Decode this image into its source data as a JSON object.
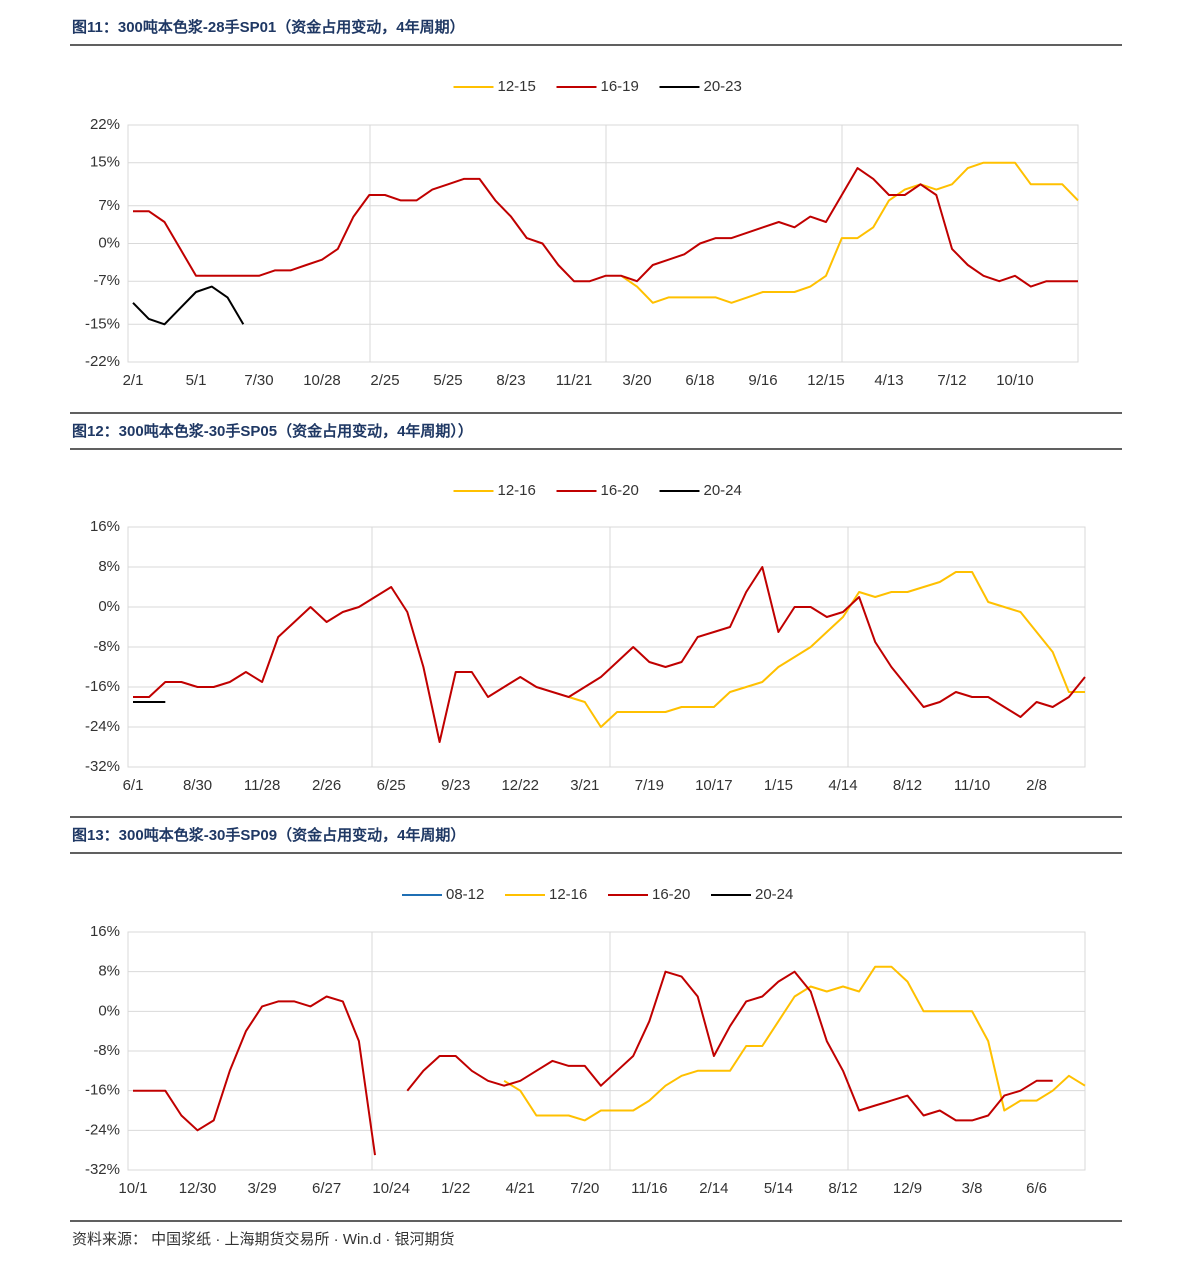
{
  "chart_data": [
    {
      "type": "line",
      "title": "图11：300吨本色浆-28手SP01（资金占用变动，4年周期）",
      "categories": [
        "2/1",
        null,
        null,
        null,
        "5/1",
        null,
        null,
        null,
        "7/30",
        null,
        null,
        null,
        "10/28",
        null,
        null,
        null,
        "2/25",
        null,
        null,
        null,
        "5/25",
        null,
        null,
        null,
        "8/23",
        null,
        null,
        null,
        "11/21",
        null,
        null,
        null,
        "3/20",
        null,
        null,
        null,
        "6/18",
        null,
        null,
        null,
        "9/16",
        null,
        null,
        null,
        "12/15",
        null,
        null,
        null,
        "4/13",
        null,
        null,
        null,
        "7/12",
        null,
        null,
        null,
        "10/10",
        null,
        null,
        null,
        null
      ],
      "ylim": [
        -22,
        22
      ],
      "yticks": [
        {
          "value": 22,
          "label": "22%"
        },
        {
          "value": 15,
          "label": "15%"
        },
        {
          "value": 7,
          "label": "7%"
        },
        {
          "value": 0,
          "label": "0%"
        },
        {
          "value": -7,
          "label": "-7%"
        },
        {
          "value": -15,
          "label": "-15%"
        },
        {
          "value": -22,
          "label": "-22%"
        }
      ],
      "grid": true,
      "series": [
        {
          "name": "12-15",
          "color": "#ffc000",
          "values": [
            null,
            null,
            null,
            null,
            null,
            null,
            null,
            null,
            null,
            null,
            null,
            null,
            null,
            null,
            null,
            null,
            null,
            null,
            null,
            null,
            null,
            null,
            null,
            null,
            null,
            null,
            null,
            null,
            null,
            null,
            null,
            -6,
            -8,
            -11,
            -10,
            -10,
            -10,
            -10,
            -11,
            -10,
            -9,
            -9,
            -9,
            -8,
            -6,
            1,
            1,
            3,
            8,
            10,
            11,
            10,
            11,
            14,
            15,
            15,
            15,
            11,
            11,
            11,
            8
          ]
        },
        {
          "name": "16-19",
          "color": "#c00000",
          "values": [
            6,
            6,
            4,
            -1,
            -6,
            -6,
            -6,
            -6,
            -6,
            -5,
            -5,
            -4,
            -3,
            -1,
            5,
            9,
            9,
            8,
            8,
            10,
            11,
            12,
            12,
            8,
            5,
            1,
            0,
            -4,
            -7,
            -7,
            -6,
            -6,
            -7,
            -4,
            -3,
            -2,
            0,
            1,
            1,
            2,
            3,
            4,
            3,
            5,
            4,
            9,
            14,
            12,
            9,
            9,
            11,
            9,
            -1,
            -4,
            -6,
            -7,
            -6,
            -8,
            -7,
            -7,
            -7
          ]
        },
        {
          "name": "20-23",
          "color": "#000000",
          "values": [
            -11,
            -14,
            -15,
            -12,
            -9,
            -8,
            -10,
            -15,
            null,
            null,
            null,
            null,
            null,
            null,
            null,
            null,
            null,
            null,
            null,
            null,
            null,
            null,
            null,
            null,
            null,
            null,
            null,
            null,
            null,
            null,
            null,
            null,
            null,
            null,
            null,
            null,
            null,
            null,
            null,
            null,
            null,
            null,
            null,
            null,
            null,
            null,
            null,
            null,
            null,
            null,
            null,
            null,
            null,
            null,
            null,
            null,
            null,
            null,
            null,
            null,
            null
          ]
        }
      ]
    },
    {
      "type": "line",
      "title": "图12：300吨本色浆-30手SP05（资金占用变动，4年周期））",
      "categories": [
        "6/1",
        null,
        null,
        null,
        "8/30",
        null,
        null,
        null,
        "11/28",
        null,
        null,
        null,
        "2/26",
        null,
        null,
        null,
        "6/25",
        null,
        null,
        null,
        "9/23",
        null,
        null,
        null,
        "12/22",
        null,
        null,
        null,
        "3/21",
        null,
        null,
        null,
        "7/19",
        null,
        null,
        null,
        "10/17",
        null,
        null,
        null,
        "1/15",
        null,
        null,
        null,
        "4/14",
        null,
        null,
        null,
        "8/12",
        null,
        null,
        null,
        "11/10",
        null,
        null,
        null,
        "2/8",
        null,
        null,
        null
      ],
      "ylim": [
        -32,
        16
      ],
      "yticks": [
        {
          "value": 16,
          "label": "16%"
        },
        {
          "value": 8,
          "label": "8%"
        },
        {
          "value": 0,
          "label": "0%"
        },
        {
          "value": -8,
          "label": "-8%"
        },
        {
          "value": -16,
          "label": "-16%"
        },
        {
          "value": -24,
          "label": "-24%"
        },
        {
          "value": -32,
          "label": "-32%"
        }
      ],
      "grid": true,
      "series": [
        {
          "name": "12-16",
          "color": "#ffc000",
          "values": [
            null,
            null,
            null,
            null,
            null,
            null,
            null,
            null,
            null,
            null,
            null,
            null,
            null,
            null,
            null,
            null,
            null,
            null,
            null,
            null,
            null,
            null,
            null,
            null,
            null,
            null,
            null,
            -18,
            -19,
            -24,
            -21,
            -21,
            -21,
            -21,
            -20,
            -20,
            -20,
            -17,
            -16,
            -15,
            -12,
            -10,
            -8,
            -5,
            -2,
            3,
            2,
            3,
            3,
            4,
            5,
            7,
            7,
            1,
            0,
            -1,
            -5,
            -9,
            -17,
            -17
          ]
        },
        {
          "name": "16-20",
          "color": "#c00000",
          "values": [
            -18,
            -18,
            -15,
            -15,
            -16,
            -16,
            -15,
            -13,
            -15,
            -6,
            -3,
            0,
            -3,
            -1,
            0,
            2,
            4,
            -1,
            -12,
            -27,
            -13,
            -13,
            -18,
            -16,
            -14,
            -16,
            -17,
            -18,
            -16,
            -14,
            -11,
            -8,
            -11,
            -12,
            -11,
            -6,
            -5,
            -4,
            3,
            8,
            -5,
            0,
            0,
            -2,
            -1,
            2,
            -7,
            -12,
            -16,
            -20,
            -19,
            -17,
            -18,
            -18,
            -20,
            -22,
            -19,
            -20,
            -18,
            -14
          ]
        },
        {
          "name": "20-24",
          "color": "#000000",
          "values": [
            -19,
            -19,
            -19,
            null,
            null,
            null,
            null,
            null,
            null,
            null,
            null,
            null,
            null,
            null,
            null,
            null,
            null,
            null,
            null,
            null,
            null,
            null,
            null,
            null,
            null,
            null,
            null,
            null,
            null,
            null,
            null,
            null,
            null,
            null,
            null,
            null,
            null,
            null,
            null,
            null,
            null,
            null,
            null,
            null,
            null,
            null,
            null,
            null,
            null,
            null,
            null,
            null,
            null,
            null,
            null,
            null,
            null,
            null,
            null,
            null
          ]
        }
      ]
    },
    {
      "type": "line",
      "title": "图13：300吨本色浆-30手SP09（资金占用变动，4年周期）",
      "categories": [
        "10/1",
        null,
        null,
        null,
        "12/30",
        null,
        null,
        null,
        "3/29",
        null,
        null,
        null,
        "6/27",
        null,
        null,
        null,
        "10/24",
        null,
        null,
        null,
        "1/22",
        null,
        null,
        null,
        "4/21",
        null,
        null,
        null,
        "7/20",
        null,
        null,
        null,
        "11/16",
        null,
        null,
        null,
        "2/14",
        null,
        null,
        null,
        "5/14",
        null,
        null,
        null,
        "8/12",
        null,
        null,
        null,
        "12/9",
        null,
        null,
        null,
        "3/8",
        null,
        null,
        null,
        "6/6",
        null,
        null,
        null
      ],
      "ylim": [
        -32,
        16
      ],
      "yticks": [
        {
          "value": 16,
          "label": "16%"
        },
        {
          "value": 8,
          "label": "8%"
        },
        {
          "value": 0,
          "label": "0%"
        },
        {
          "value": -8,
          "label": "-8%"
        },
        {
          "value": -16,
          "label": "-16%"
        },
        {
          "value": -24,
          "label": "-24%"
        },
        {
          "value": -32,
          "label": "-32%"
        }
      ],
      "grid": true,
      "series": [
        {
          "name": "08-12",
          "color": "#1f6fb4",
          "values": [
            null,
            null,
            null,
            null,
            null,
            null,
            null,
            null,
            null,
            null,
            null,
            null,
            null,
            null,
            null,
            null,
            null,
            null,
            null,
            null,
            null,
            null,
            null,
            null,
            null,
            null,
            null,
            null,
            null,
            null,
            null,
            null,
            null,
            null,
            null,
            null,
            null,
            null,
            null,
            null,
            null,
            null,
            null,
            null,
            null,
            null,
            null,
            null,
            null,
            null,
            null,
            null,
            null,
            null,
            null,
            null,
            null,
            null,
            null,
            null
          ]
        },
        {
          "name": "12-16",
          "color": "#ffc000",
          "values": [
            null,
            null,
            null,
            null,
            null,
            null,
            null,
            null,
            null,
            null,
            null,
            null,
            null,
            null,
            null,
            null,
            null,
            null,
            null,
            null,
            null,
            null,
            null,
            -14,
            -16,
            -21,
            -21,
            -21,
            -22,
            -20,
            -20,
            -20,
            -18,
            -15,
            -13,
            -12,
            -12,
            -12,
            -7,
            -7,
            -2,
            3,
            5,
            4,
            5,
            4,
            9,
            9,
            6,
            0,
            0,
            0,
            0,
            -6,
            -20,
            -18,
            -18,
            -16,
            -13,
            -15
          ]
        },
        {
          "name": "16-20",
          "color": "#c00000",
          "values": [
            -16,
            -16,
            -16,
            -21,
            -24,
            -22,
            -12,
            -4,
            1,
            2,
            2,
            1,
            3,
            2,
            -6,
            -29,
            null,
            -16,
            -12,
            -9,
            -9,
            -12,
            -14,
            -15,
            -14,
            -12,
            -10,
            -11,
            -11,
            -15,
            -12,
            -9,
            -2,
            8,
            7,
            3,
            -9,
            -3,
            2,
            3,
            6,
            8,
            4,
            -6,
            -12,
            -20,
            -19,
            -18,
            -17,
            -21,
            -20,
            -22,
            -22,
            -21,
            -17,
            -16,
            -14,
            -14,
            null,
            null
          ]
        },
        {
          "name": "20-24",
          "color": "#000000",
          "values": [
            null,
            null,
            null,
            null,
            null,
            null,
            null,
            null,
            null,
            null,
            null,
            null,
            null,
            null,
            null,
            null,
            null,
            null,
            null,
            null,
            null,
            null,
            null,
            null,
            null,
            null,
            null,
            null,
            null,
            null,
            null,
            null,
            null,
            null,
            null,
            null,
            null,
            null,
            null,
            null,
            null,
            null,
            null,
            null,
            null,
            null,
            null,
            null,
            null,
            null,
            null,
            null,
            null,
            null,
            null,
            null,
            null,
            null,
            null,
            null
          ]
        }
      ]
    }
  ],
  "source": "资料来源：  中国浆纸 · 上海期货交易所 · Win.d · 银河期货"
}
